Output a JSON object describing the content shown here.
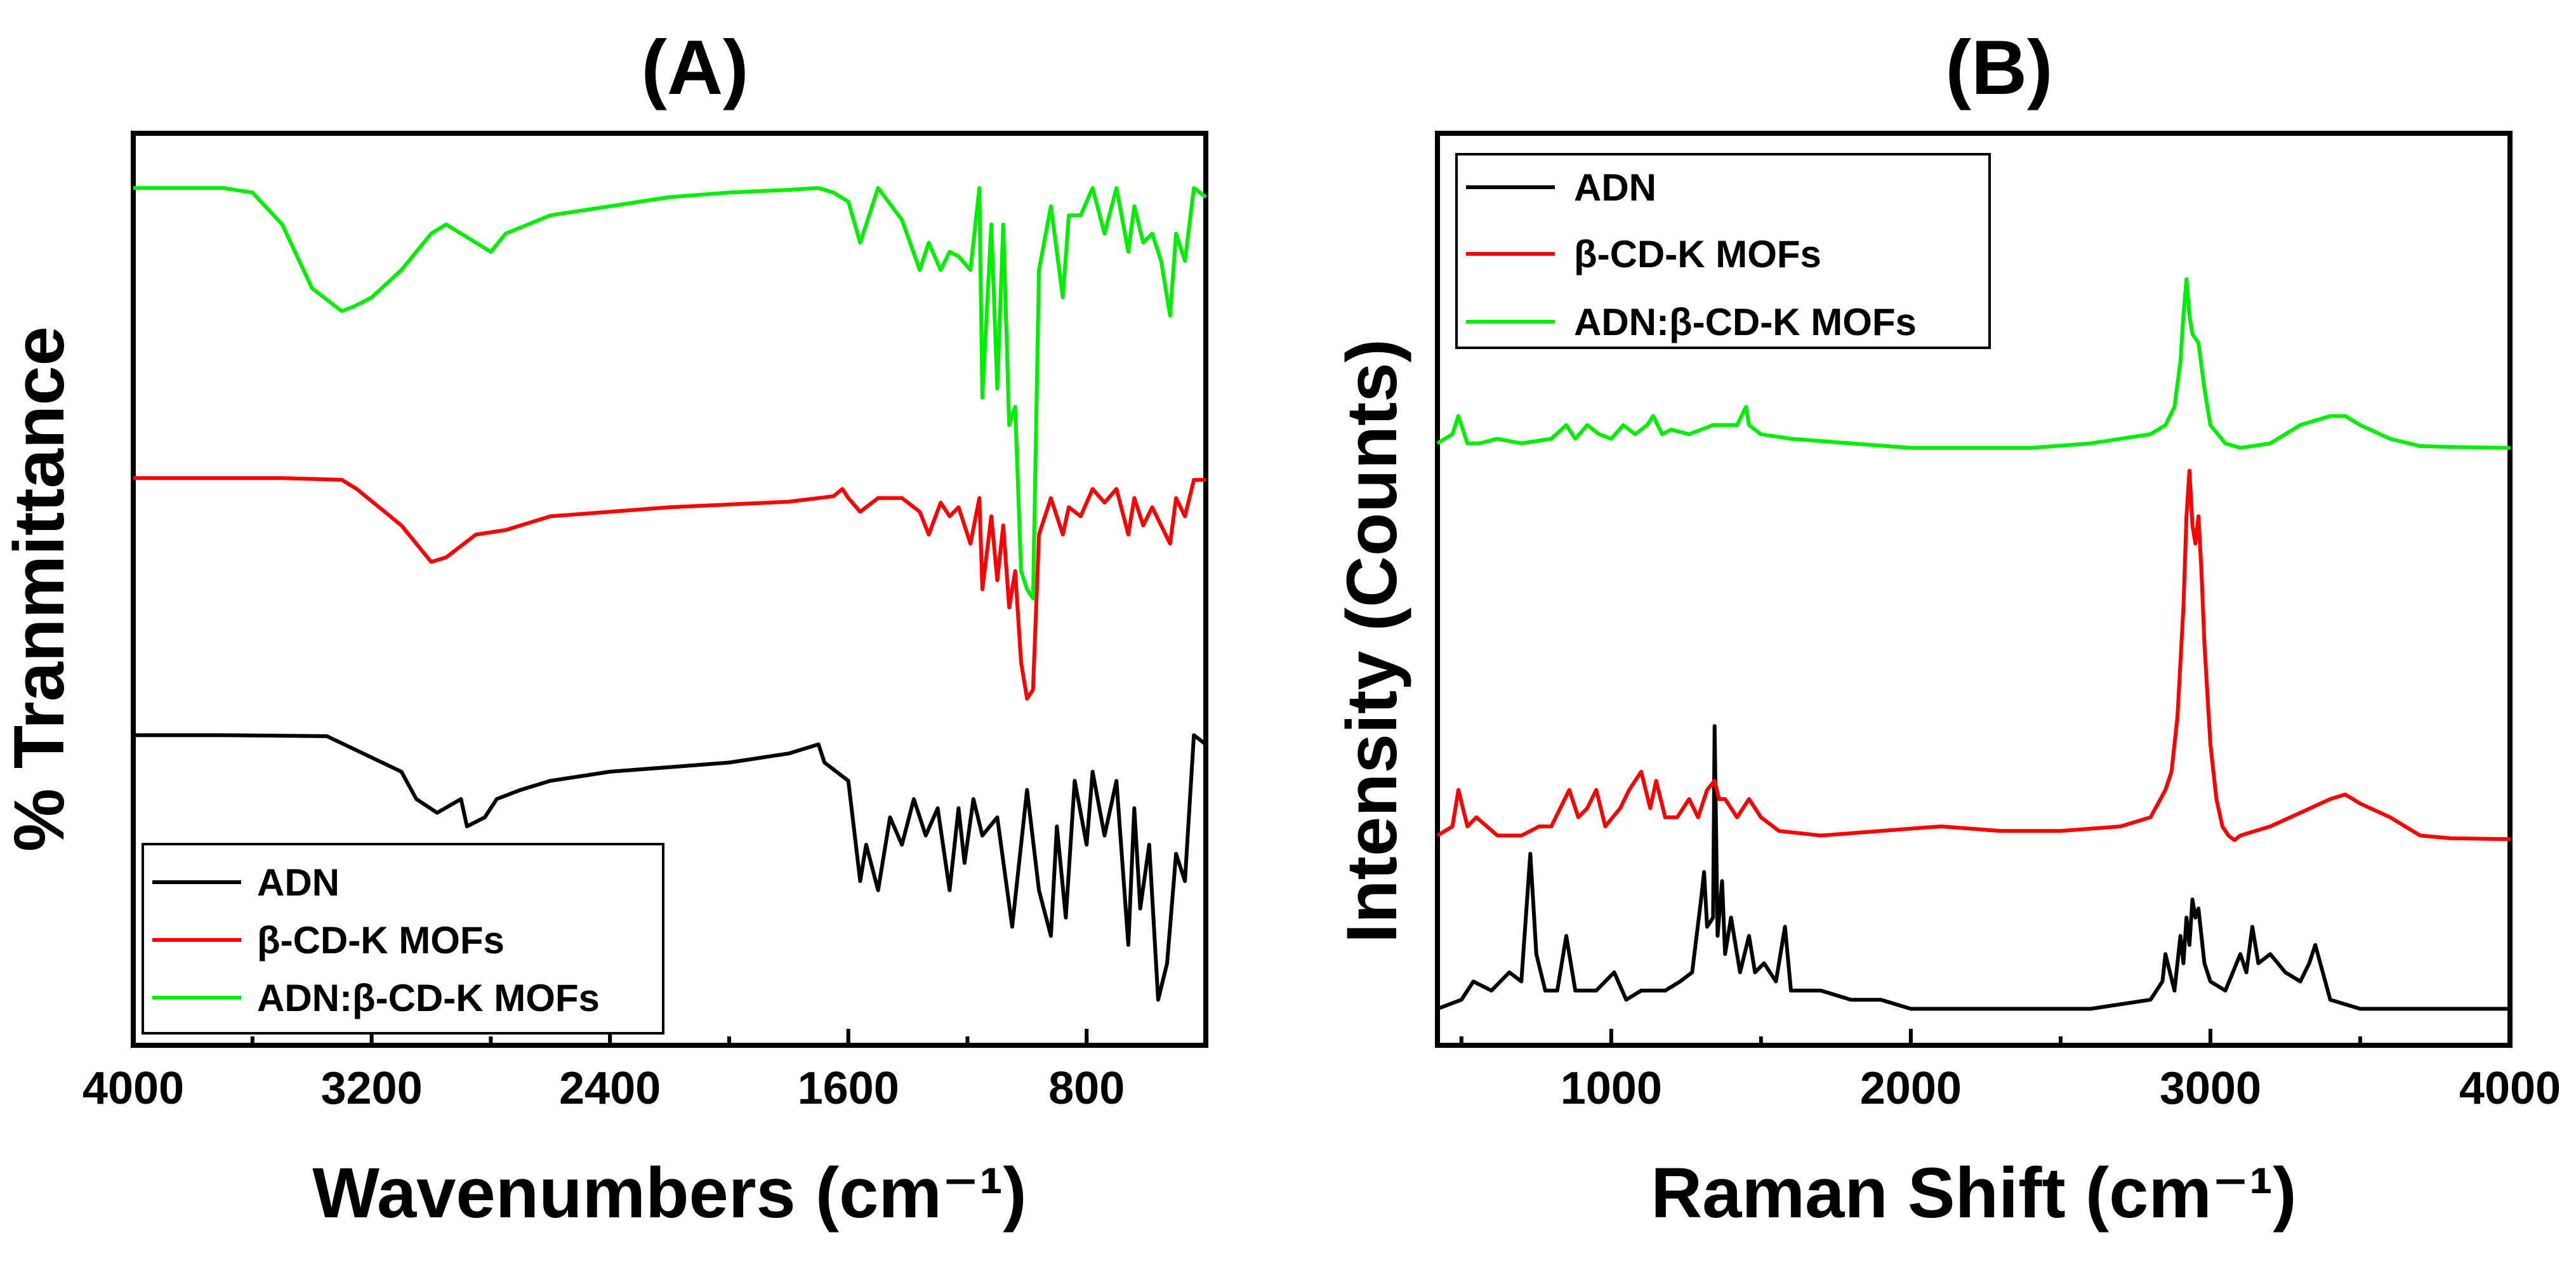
{
  "chart_data": [
    {
      "panel_label": "(A)",
      "type": "line",
      "xlabel": "Wavenumbers (cm⁻¹)",
      "ylabel": "% Tranmittance",
      "x_reversed": true,
      "xlim": [
        4000,
        400
      ],
      "ylim": [
        0,
        100
      ],
      "x_ticks": [
        "4000",
        "3200",
        "2400",
        "1600",
        "800"
      ],
      "x_tick_values": [
        4000,
        3200,
        2400,
        1600,
        800
      ],
      "legend_position": "bottom-left",
      "series": [
        {
          "name": "ADN",
          "color": "#000000",
          "x": [
            4000,
            3700,
            3350,
            3100,
            3050,
            2980,
            2900,
            2880,
            2820,
            2780,
            2700,
            2600,
            2500,
            2400,
            2200,
            2000,
            1800,
            1700,
            1680,
            1600,
            1560,
            1540,
            1500,
            1460,
            1420,
            1380,
            1340,
            1300,
            1260,
            1230,
            1210,
            1180,
            1150,
            1100,
            1050,
            1000,
            960,
            920,
            900,
            870,
            840,
            800,
            780,
            740,
            700,
            660,
            640,
            620,
            590,
            560,
            530,
            500,
            470,
            440,
            400
          ],
          "y": [
            34,
            34,
            33.9,
            30,
            27,
            25.5,
            27,
            24,
            25,
            27,
            28,
            29,
            29.5,
            30,
            30.5,
            31,
            32,
            33,
            31,
            29,
            18,
            22,
            17,
            25,
            22,
            27,
            23,
            26,
            17,
            26,
            20,
            27,
            23,
            25,
            13,
            28,
            17,
            12,
            24,
            14,
            29,
            22,
            30,
            23,
            29,
            11,
            26,
            15,
            22,
            5,
            9,
            21,
            18,
            34,
            33
          ]
        },
        {
          "name": "β-CD-K MOFs",
          "color": "#ff0000",
          "x": [
            4000,
            3500,
            3300,
            3250,
            3100,
            3000,
            2950,
            2850,
            2750,
            2600,
            2400,
            2200,
            2000,
            1800,
            1700,
            1650,
            1620,
            1600,
            1560,
            1500,
            1420,
            1360,
            1330,
            1290,
            1260,
            1230,
            1190,
            1160,
            1150,
            1120,
            1100,
            1080,
            1060,
            1040,
            1020,
            1000,
            980,
            960,
            920,
            880,
            860,
            820,
            780,
            740,
            700,
            660,
            640,
            610,
            580,
            550,
            520,
            500,
            470,
            440,
            400
          ],
          "y": [
            62.2,
            62.2,
            62,
            61,
            57,
            53,
            53.5,
            56,
            56.5,
            58,
            58.5,
            59,
            59.3,
            59.6,
            60,
            60.2,
            61,
            60,
            58.5,
            60,
            60,
            58.5,
            56,
            59.5,
            58,
            59,
            55,
            60,
            50,
            58,
            51,
            57,
            48,
            52,
            42,
            38,
            39,
            56,
            60,
            56,
            59,
            58,
            61,
            59.5,
            61,
            56,
            60,
            57,
            59,
            57,
            55,
            60,
            58,
            62,
            62
          ]
        },
        {
          "name": "ADN:β-CD-K MOFs",
          "color": "#00ee00",
          "x": [
            4000,
            3700,
            3600,
            3500,
            3400,
            3300,
            3260,
            3200,
            3100,
            3000,
            2950,
            2850,
            2800,
            2750,
            2600,
            2400,
            2200,
            2000,
            1800,
            1700,
            1650,
            1600,
            1560,
            1500,
            1420,
            1360,
            1330,
            1290,
            1260,
            1230,
            1190,
            1160,
            1150,
            1120,
            1100,
            1080,
            1060,
            1040,
            1020,
            1000,
            980,
            960,
            920,
            880,
            860,
            820,
            780,
            740,
            700,
            660,
            640,
            610,
            580,
            550,
            520,
            500,
            470,
            440,
            400
          ],
          "y": [
            94,
            94,
            93.5,
            90,
            83,
            80.5,
            81,
            82,
            85,
            89,
            90,
            88,
            87,
            89,
            91,
            92,
            93,
            93.5,
            93.8,
            94,
            93.5,
            92.5,
            88,
            94,
            90.5,
            85,
            88,
            85,
            87,
            86.5,
            85,
            94,
            71,
            90,
            72,
            90,
            68,
            70,
            52,
            50,
            49,
            85,
            92,
            82,
            91,
            91,
            94,
            89,
            94,
            87,
            92,
            88,
            89,
            86,
            80,
            89,
            86,
            94,
            93
          ]
        }
      ]
    },
    {
      "panel_label": "(B)",
      "type": "line",
      "xlabel": "Raman Shift (cm⁻¹)",
      "ylabel": "Intensity (Counts)",
      "x_reversed": false,
      "xlim": [
        420,
        4000
      ],
      "ylim": [
        0,
        100
      ],
      "x_ticks": [
        "1000",
        "2000",
        "3000",
        "4000"
      ],
      "x_tick_values": [
        1000,
        2000,
        3000,
        4000
      ],
      "legend_position": "top-left",
      "series": [
        {
          "name": "ADN",
          "color": "#000000",
          "x": [
            420,
            500,
            540,
            600,
            660,
            700,
            730,
            750,
            780,
            820,
            850,
            880,
            950,
            1010,
            1050,
            1100,
            1180,
            1230,
            1270,
            1300,
            1310,
            1320,
            1340,
            1345,
            1355,
            1370,
            1380,
            1400,
            1430,
            1460,
            1480,
            1510,
            1550,
            1580,
            1600,
            1700,
            1800,
            1900,
            2000,
            2200,
            2400,
            2600,
            2800,
            2840,
            2850,
            2880,
            2900,
            2910,
            2920,
            2930,
            2940,
            2950,
            2960,
            2980,
            3000,
            3050,
            3100,
            3120,
            3140,
            3160,
            3200,
            3250,
            3300,
            3330,
            3350,
            3400,
            3500,
            3600,
            3800,
            4000
          ],
          "y": [
            4,
            5,
            7,
            6,
            8,
            7,
            21,
            10,
            6,
            6,
            12,
            6,
            6,
            8,
            5,
            6,
            6,
            7,
            8,
            16,
            19,
            13,
            14,
            35,
            12,
            18,
            10,
            14,
            8,
            12,
            8,
            9,
            7,
            13,
            6,
            6,
            5,
            5,
            4,
            4,
            4,
            4,
            5,
            7,
            10,
            6,
            12,
            9,
            14,
            11,
            16,
            14,
            15,
            9,
            7,
            6,
            10,
            8,
            13,
            9,
            10,
            8,
            7,
            9,
            11,
            5,
            4,
            4,
            4,
            4
          ]
        },
        {
          "name": "β-CD-K MOFs",
          "color": "#ff0000",
          "x": [
            420,
            470,
            490,
            520,
            550,
            620,
            700,
            760,
            800,
            860,
            890,
            920,
            950,
            980,
            1030,
            1060,
            1100,
            1130,
            1150,
            1180,
            1220,
            1260,
            1290,
            1320,
            1345,
            1360,
            1380,
            1420,
            1460,
            1500,
            1560,
            1700,
            1900,
            2100,
            2300,
            2500,
            2700,
            2800,
            2850,
            2870,
            2890,
            2910,
            2920,
            2930,
            2940,
            2950,
            2960,
            2970,
            2980,
            3000,
            3020,
            3040,
            3060,
            3080,
            3100,
            3200,
            3300,
            3400,
            3450,
            3500,
            3600,
            3700,
            3800,
            4000
          ],
          "y": [
            23,
            24,
            28,
            24,
            25,
            23,
            23,
            24,
            24,
            28,
            25,
            26,
            28,
            24,
            26,
            28,
            30,
            26,
            29,
            25,
            25,
            27,
            25,
            28,
            29,
            27,
            27,
            25,
            27,
            25,
            23.5,
            23,
            23.5,
            24,
            23.5,
            23.5,
            24,
            25,
            28,
            30,
            36,
            48,
            58,
            63,
            57,
            55,
            58,
            52,
            44,
            33,
            27,
            24,
            23,
            22.5,
            23,
            24,
            25.5,
            27,
            27.5,
            26.5,
            25,
            23,
            22.7,
            22.6
          ]
        },
        {
          "name": "ADN:β-CD-K MOFs",
          "color": "#00ee00",
          "x": [
            420,
            470,
            490,
            520,
            560,
            620,
            700,
            800,
            850,
            880,
            920,
            960,
            1000,
            1040,
            1080,
            1120,
            1140,
            1170,
            1200,
            1260,
            1300,
            1340,
            1380,
            1420,
            1450,
            1460,
            1500,
            1600,
            1800,
            2000,
            2200,
            2400,
            2600,
            2800,
            2850,
            2880,
            2900,
            2910,
            2920,
            2930,
            2940,
            2960,
            2980,
            3000,
            3050,
            3100,
            3200,
            3300,
            3400,
            3450,
            3500,
            3600,
            3700,
            3800,
            4000
          ],
          "y": [
            66,
            67,
            69,
            66,
            66,
            66.5,
            66,
            66.5,
            68,
            66.5,
            68,
            67,
            66.5,
            68,
            67,
            68,
            69,
            67,
            67.5,
            67,
            67.5,
            68,
            68,
            68,
            70,
            68,
            67,
            66.5,
            66,
            65.5,
            65.5,
            65.5,
            66,
            67,
            68,
            70,
            75,
            80,
            84,
            80,
            78,
            77,
            72,
            68,
            66,
            65.5,
            66,
            68,
            69,
            69,
            68,
            66.5,
            65.7,
            65.6,
            65.5
          ]
        }
      ]
    }
  ]
}
